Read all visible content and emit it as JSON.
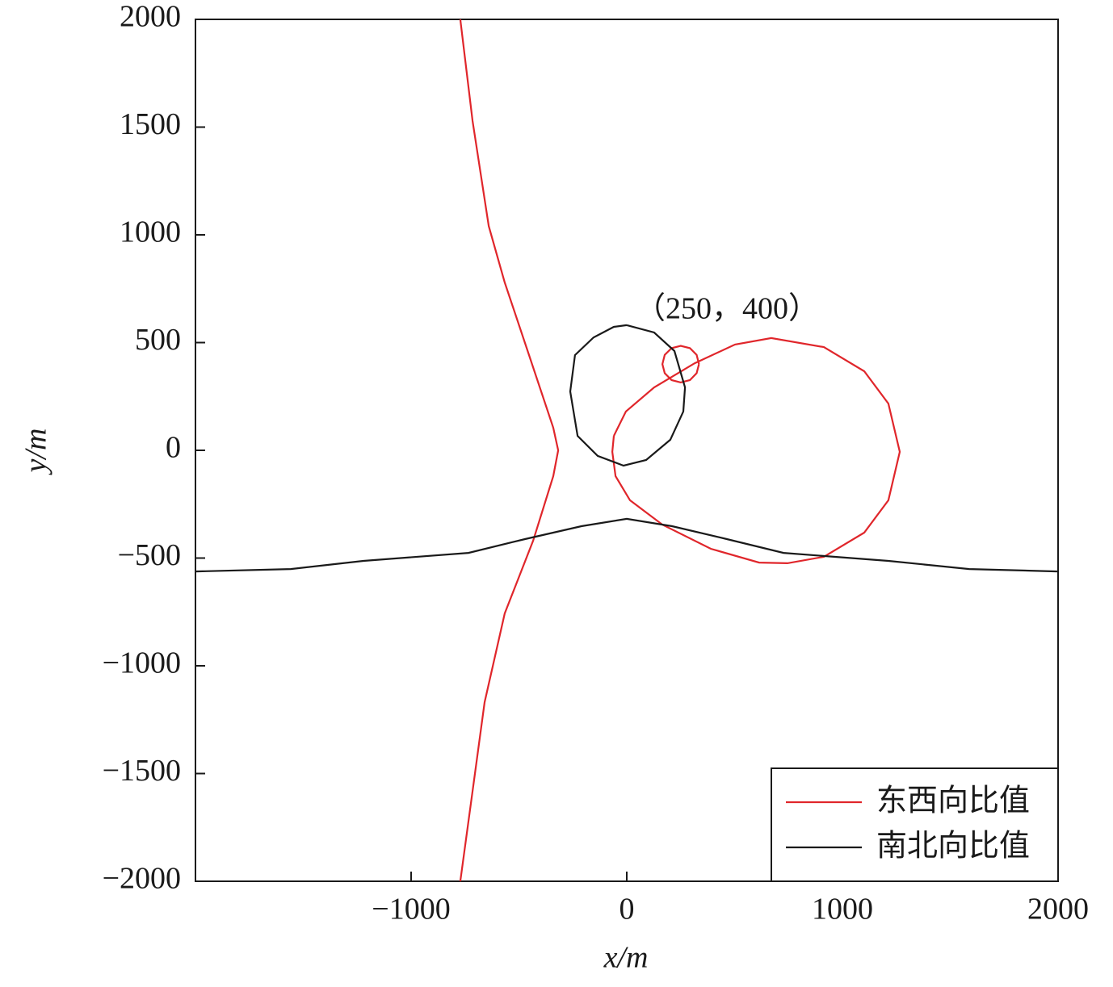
{
  "chart_data": {
    "type": "line",
    "annotation": "（250，400）",
    "xlabel": "x/m",
    "ylabel": "y/m",
    "xlim": [
      -2000,
      2000
    ],
    "ylim": [
      -2000,
      2000
    ],
    "xticks": [
      {
        "value": -1000,
        "label": "−1000"
      },
      0,
      1000,
      2000
    ],
    "yticks": [
      {
        "value": -2000,
        "label": "−2000"
      },
      {
        "value": -1500,
        "label": "−1500"
      },
      {
        "value": -1000,
        "label": "−1000"
      },
      {
        "value": -500,
        "label": "−500"
      },
      0,
      500,
      1000,
      1500,
      2000
    ],
    "legend": "lower right",
    "series": [
      {
        "name": "东西向比值",
        "color": "#e0262b",
        "x": [
          -772,
          -715,
          -640,
          -566,
          -453,
          -341,
          -318,
          -341,
          -434,
          -566,
          -659,
          -715,
          -772,
          null,
          -60,
          -4,
          127,
          315,
          502,
          670,
          914,
          1101,
          1213,
          1266,
          1213,
          1101,
          914,
          745,
          614,
          390,
          165,
          15,
          -52,
          -67,
          -60,
          null,
          335,
          324,
          293,
          250,
          208,
          176,
          165,
          176,
          208,
          250,
          293,
          324,
          335
        ],
        "values": [
          2000,
          1528,
          1041,
          779,
          442,
          105,
          0,
          -120,
          -419,
          -757,
          -1169,
          -1581,
          -2000,
          null,
          67,
          180,
          292,
          404,
          491,
          521,
          479,
          367,
          217,
          -7,
          -232,
          -382,
          -494,
          -524,
          -521,
          -457,
          -345,
          -232,
          -120,
          -7,
          67,
          null,
          400,
          443,
          474,
          485,
          474,
          443,
          400,
          358,
          326,
          315,
          326,
          358,
          400
        ]
      },
      {
        "name": "南北向比值",
        "color": "#1a1a1a",
        "x": [
          0,
          127,
          221,
          270,
          262,
          202,
          90,
          -15,
          -135,
          -228,
          -262,
          -240,
          -154,
          -60,
          0,
          null,
          -2000,
          -1558,
          -1221,
          -734,
          -472,
          -210,
          0,
          210,
          464,
          727,
          1213,
          1588,
          2000
        ],
        "values": [
          581,
          547,
          461,
          292,
          180,
          49,
          -45,
          -71,
          -26,
          67,
          273,
          442,
          524,
          573,
          581,
          null,
          -562,
          -551,
          -513,
          -476,
          -412,
          -352,
          -318,
          -352,
          -412,
          -476,
          -513,
          -551,
          -562
        ]
      }
    ]
  }
}
